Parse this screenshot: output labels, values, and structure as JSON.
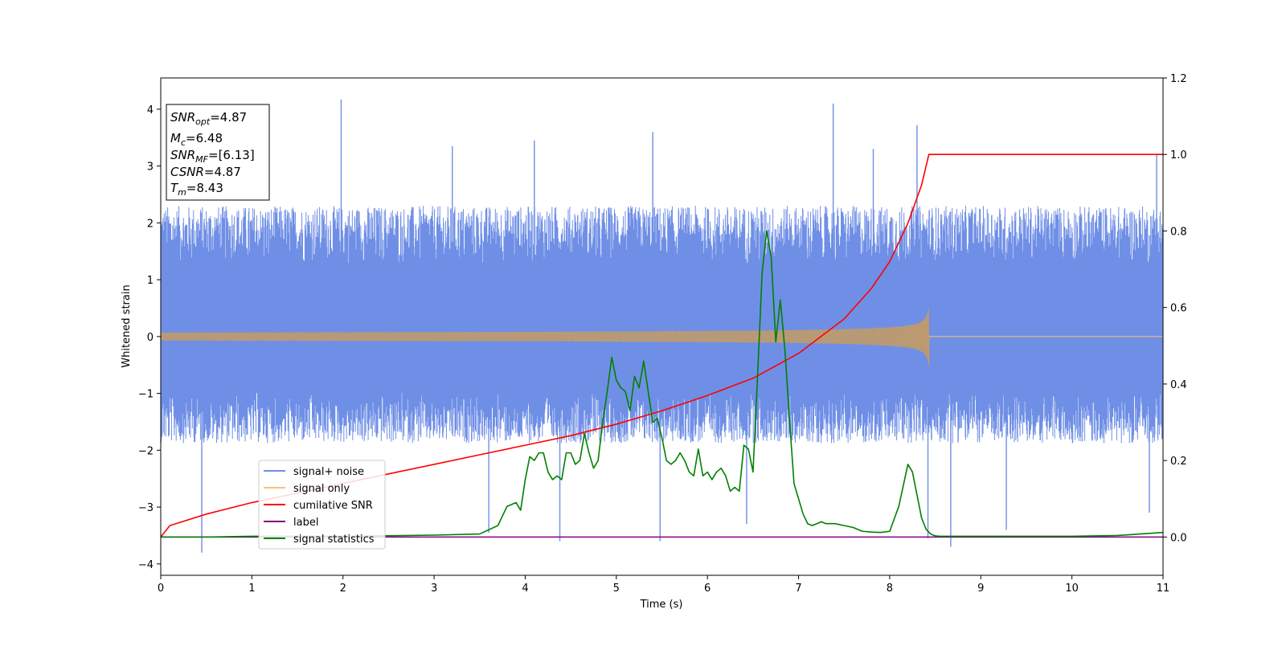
{
  "chart_data": {
    "type": "line",
    "xlabel": "Time (s)",
    "ylabel": "Whitened strain",
    "xlim": [
      0,
      11
    ],
    "ylim": [
      -4.2,
      4.55
    ],
    "ylim_right": [
      -0.1,
      1.2
    ],
    "x_ticks": [
      0,
      1,
      2,
      3,
      4,
      5,
      6,
      7,
      8,
      9,
      10,
      11
    ],
    "y_ticks": [
      -4,
      -3,
      -2,
      -1,
      0,
      1,
      2,
      3,
      4
    ],
    "y_ticks_right": [
      0.0,
      0.2,
      0.4,
      0.6,
      0.8,
      1.0,
      1.2
    ],
    "x_tick_labels": [
      "0",
      "1",
      "2",
      "3",
      "4",
      "5",
      "6",
      "7",
      "8",
      "9",
      "10",
      "11"
    ],
    "y_tick_labels": [
      "−4",
      "−3",
      "−2",
      "−1",
      "0",
      "1",
      "2",
      "3",
      "4"
    ],
    "y_tick_labels_right": [
      "0.0",
      "0.2",
      "0.4",
      "0.6",
      "0.8",
      "1.0",
      "1.2"
    ],
    "legend": {
      "position": "lower-left",
      "entries": [
        {
          "label": "signal+ noise",
          "color": "#6f8fe6"
        },
        {
          "label": "signal only",
          "color": "#f6c27a"
        },
        {
          "label": "cumilative SNR",
          "color": "#ff0000"
        },
        {
          "label": "label",
          "color": "#800080"
        },
        {
          "label": "signal statistics",
          "color": "#008000"
        }
      ]
    },
    "stats_box": {
      "position": "upper-left",
      "lines": [
        {
          "sym": "SNR",
          "sub": "opt",
          "value": "=4.87"
        },
        {
          "sym": "M",
          "sub": "c",
          "value": "=6.48"
        },
        {
          "sym": "SNR",
          "sub": "MF",
          "value": "=[6.13]"
        },
        {
          "sym": "CSNR",
          "sub": "",
          "value": "=4.87"
        },
        {
          "sym": "T",
          "sub": "m",
          "value": "=8.43"
        }
      ]
    },
    "series": [
      {
        "name": "signal+ noise",
        "axis": "left",
        "color": "#6f8fe6",
        "style": "noise band",
        "band_typical": [
          -1.5,
          2.3
        ],
        "spikes": [
          [
            0.45,
            -3.8
          ],
          [
            1.98,
            4.17
          ],
          [
            3.2,
            3.35
          ],
          [
            3.6,
            -3.45
          ],
          [
            4.1,
            3.45
          ],
          [
            4.38,
            -3.6
          ],
          [
            5.48,
            -3.6
          ],
          [
            5.4,
            3.6
          ],
          [
            6.43,
            -3.3
          ],
          [
            7.38,
            4.1
          ],
          [
            7.82,
            3.3
          ],
          [
            8.3,
            3.72
          ],
          [
            8.42,
            -3.55
          ],
          [
            8.67,
            -3.7
          ],
          [
            9.28,
            -3.4
          ],
          [
            10.85,
            -3.1
          ],
          [
            10.93,
            3.2
          ]
        ]
      },
      {
        "name": "signal only",
        "axis": "left",
        "color": "#f6c27a",
        "style": "chirp",
        "merger_time": 8.43,
        "peak_amplitude": 0.55
      },
      {
        "name": "cumilative SNR",
        "axis": "right",
        "color": "#ff0000",
        "x": [
          0,
          0.1,
          0.5,
          1,
          1.5,
          2,
          2.5,
          3,
          3.5,
          4,
          4.5,
          5,
          5.5,
          6,
          6.5,
          7,
          7.5,
          7.8,
          8.0,
          8.2,
          8.35,
          8.43,
          9,
          10,
          11
        ],
        "y": [
          0.0,
          0.03,
          0.06,
          0.09,
          0.115,
          0.14,
          0.165,
          0.19,
          0.215,
          0.24,
          0.265,
          0.295,
          0.33,
          0.37,
          0.415,
          0.48,
          0.57,
          0.65,
          0.72,
          0.82,
          0.92,
          1.0,
          1.0,
          1.0,
          1.0
        ]
      },
      {
        "name": "label",
        "axis": "right",
        "color": "#800080",
        "x": [
          0,
          11
        ],
        "y": [
          0.0,
          0.0
        ]
      },
      {
        "name": "signal statistics",
        "axis": "right",
        "color": "#008000",
        "x": [
          0,
          0.5,
          1,
          2,
          3,
          3.5,
          3.7,
          3.8,
          3.9,
          3.95,
          4.0,
          4.05,
          4.1,
          4.15,
          4.2,
          4.25,
          4.3,
          4.35,
          4.4,
          4.45,
          4.5,
          4.55,
          4.6,
          4.65,
          4.7,
          4.75,
          4.8,
          4.85,
          4.9,
          4.95,
          5.0,
          5.05,
          5.1,
          5.15,
          5.2,
          5.25,
          5.3,
          5.35,
          5.4,
          5.45,
          5.5,
          5.55,
          5.6,
          5.65,
          5.7,
          5.75,
          5.8,
          5.85,
          5.9,
          5.95,
          6.0,
          6.05,
          6.1,
          6.15,
          6.2,
          6.25,
          6.3,
          6.35,
          6.4,
          6.45,
          6.5,
          6.55,
          6.6,
          6.65,
          6.7,
          6.75,
          6.8,
          6.85,
          6.9,
          6.95,
          7.0,
          7.05,
          7.1,
          7.15,
          7.2,
          7.25,
          7.3,
          7.4,
          7.5,
          7.6,
          7.7,
          7.8,
          7.9,
          8.0,
          8.1,
          8.2,
          8.25,
          8.3,
          8.35,
          8.4,
          8.45,
          8.5,
          8.55,
          8.6,
          8.7,
          9,
          10,
          10.5,
          11
        ],
        "y": [
          0.0,
          0.0,
          0.002,
          0.002,
          0.005,
          0.008,
          0.03,
          0.08,
          0.09,
          0.07,
          0.15,
          0.21,
          0.2,
          0.22,
          0.22,
          0.17,
          0.15,
          0.16,
          0.15,
          0.22,
          0.22,
          0.19,
          0.2,
          0.27,
          0.22,
          0.18,
          0.2,
          0.3,
          0.38,
          0.47,
          0.41,
          0.39,
          0.38,
          0.33,
          0.42,
          0.39,
          0.46,
          0.38,
          0.3,
          0.31,
          0.26,
          0.2,
          0.19,
          0.2,
          0.22,
          0.2,
          0.17,
          0.16,
          0.23,
          0.16,
          0.17,
          0.15,
          0.17,
          0.18,
          0.16,
          0.12,
          0.13,
          0.12,
          0.24,
          0.23,
          0.17,
          0.42,
          0.69,
          0.8,
          0.73,
          0.51,
          0.62,
          0.49,
          0.31,
          0.14,
          0.1,
          0.06,
          0.035,
          0.03,
          0.035,
          0.04,
          0.035,
          0.035,
          0.03,
          0.025,
          0.015,
          0.013,
          0.012,
          0.015,
          0.08,
          0.19,
          0.17,
          0.11,
          0.05,
          0.02,
          0.008,
          0.003,
          0.002,
          0.002,
          0.002,
          0.002,
          0.002,
          0.004,
          0.012
        ]
      }
    ]
  }
}
